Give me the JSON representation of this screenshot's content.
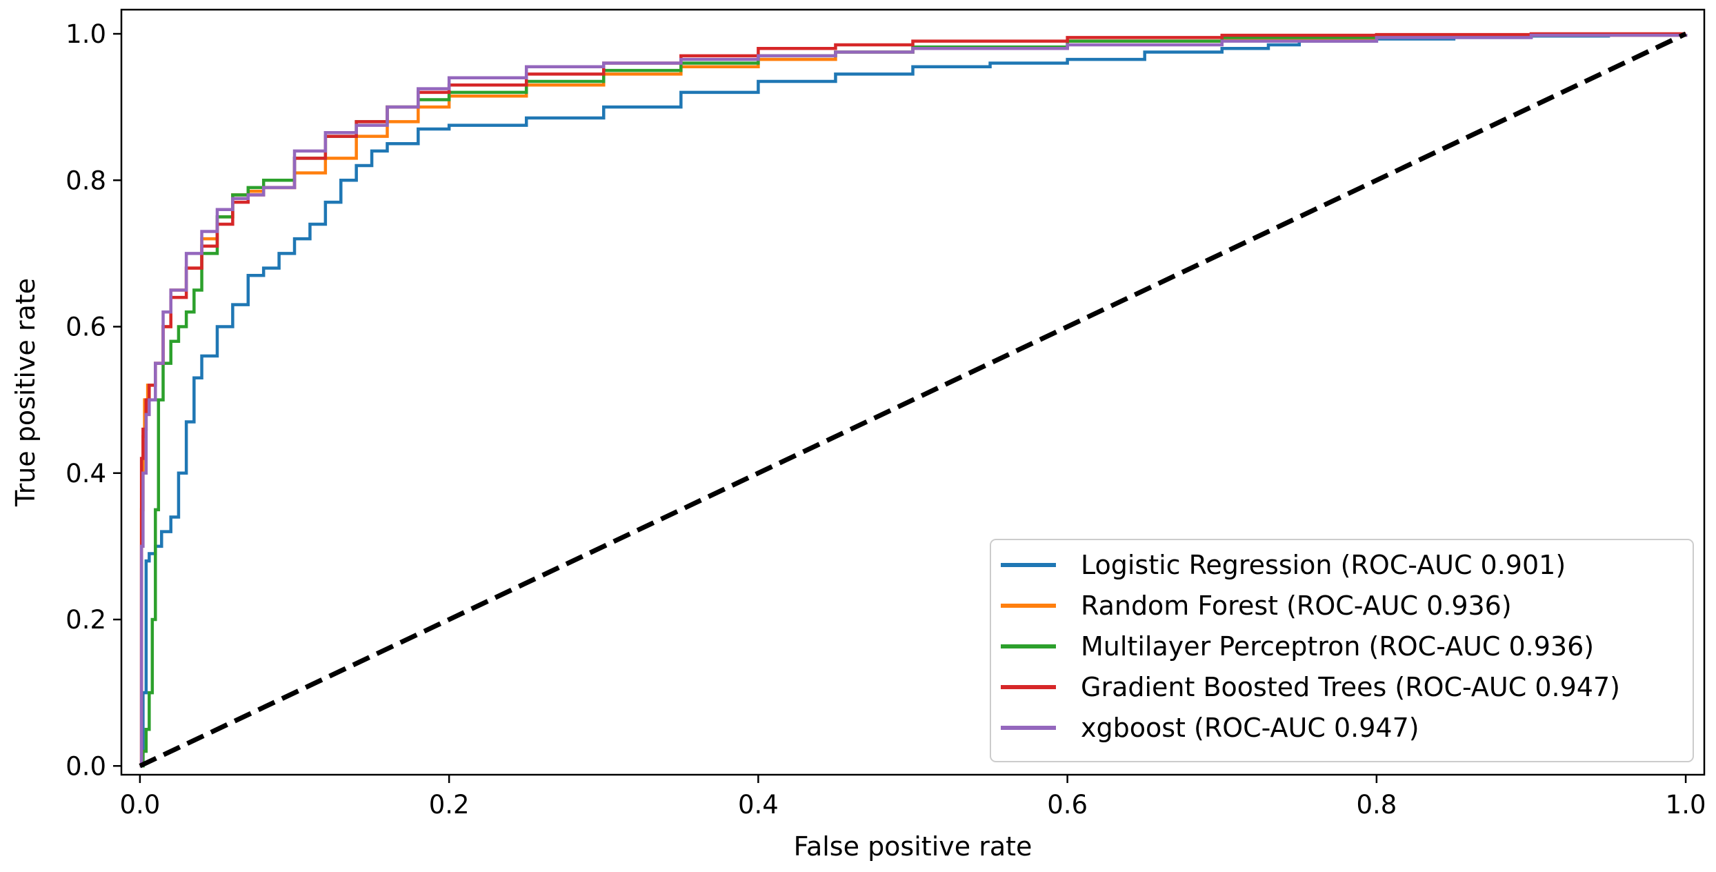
{
  "chart_data": {
    "type": "line",
    "title": "",
    "xlabel": "False positive rate",
    "ylabel": "True positive rate",
    "xlim": [
      -0.012,
      1.012
    ],
    "ylim": [
      -0.012,
      1.033
    ],
    "x_ticks": [
      0.0,
      0.2,
      0.4,
      0.6,
      0.8,
      1.0
    ],
    "x_tick_labels": [
      "0.0",
      "0.2",
      "0.4",
      "0.6",
      "0.8",
      "1.0"
    ],
    "y_ticks": [
      0.0,
      0.2,
      0.4,
      0.6,
      0.8,
      1.0
    ],
    "y_tick_labels": [
      "0.0",
      "0.2",
      "0.4",
      "0.6",
      "0.8",
      "1.0"
    ],
    "grid": false,
    "legend_position": "lower-right",
    "series": [
      {
        "name": "Logistic Regression (ROC-AUC 0.901)",
        "color": "#1f77b4",
        "x": [
          0,
          0.002,
          0.004,
          0.006,
          0.01,
          0.014,
          0.02,
          0.025,
          0.03,
          0.035,
          0.04,
          0.05,
          0.06,
          0.07,
          0.08,
          0.09,
          0.1,
          0.11,
          0.12,
          0.13,
          0.14,
          0.15,
          0.16,
          0.18,
          0.2,
          0.25,
          0.3,
          0.35,
          0.4,
          0.45,
          0.5,
          0.55,
          0.6,
          0.65,
          0.7,
          0.73,
          0.75,
          0.8,
          0.85,
          0.9,
          0.95,
          1.0
        ],
        "y": [
          0,
          0.1,
          0.28,
          0.29,
          0.3,
          0.32,
          0.34,
          0.4,
          0.47,
          0.53,
          0.56,
          0.6,
          0.63,
          0.67,
          0.68,
          0.7,
          0.72,
          0.74,
          0.77,
          0.8,
          0.82,
          0.84,
          0.85,
          0.87,
          0.875,
          0.885,
          0.9,
          0.92,
          0.935,
          0.945,
          0.955,
          0.96,
          0.965,
          0.975,
          0.98,
          0.985,
          0.99,
          0.993,
          0.995,
          0.997,
          0.999,
          1.0
        ]
      },
      {
        "name": "Random Forest (ROC-AUC 0.936)",
        "color": "#ff7f0e",
        "x": [
          0,
          0.001,
          0.002,
          0.003,
          0.005,
          0.01,
          0.015,
          0.02,
          0.03,
          0.04,
          0.05,
          0.06,
          0.07,
          0.08,
          0.1,
          0.12,
          0.14,
          0.16,
          0.18,
          0.2,
          0.25,
          0.3,
          0.35,
          0.4,
          0.45,
          0.5,
          0.6,
          0.7,
          0.8,
          0.9,
          1.0
        ],
        "y": [
          0,
          0.35,
          0.45,
          0.5,
          0.52,
          0.55,
          0.6,
          0.65,
          0.68,
          0.72,
          0.75,
          0.78,
          0.785,
          0.79,
          0.81,
          0.83,
          0.86,
          0.88,
          0.9,
          0.915,
          0.93,
          0.945,
          0.955,
          0.965,
          0.975,
          0.98,
          0.99,
          0.993,
          0.996,
          0.998,
          1.0
        ]
      },
      {
        "name": "Multilayer Perceptron (ROC-AUC 0.936)",
        "color": "#2ca02c",
        "x": [
          0,
          0.002,
          0.004,
          0.006,
          0.008,
          0.01,
          0.012,
          0.015,
          0.02,
          0.025,
          0.03,
          0.035,
          0.04,
          0.05,
          0.06,
          0.07,
          0.08,
          0.1,
          0.12,
          0.14,
          0.16,
          0.18,
          0.2,
          0.25,
          0.3,
          0.35,
          0.4,
          0.45,
          0.5,
          0.6,
          0.7,
          0.8,
          0.9,
          1.0
        ],
        "y": [
          0,
          0.02,
          0.05,
          0.1,
          0.2,
          0.35,
          0.5,
          0.55,
          0.58,
          0.6,
          0.62,
          0.65,
          0.7,
          0.75,
          0.78,
          0.79,
          0.8,
          0.83,
          0.86,
          0.88,
          0.9,
          0.91,
          0.92,
          0.935,
          0.95,
          0.96,
          0.97,
          0.975,
          0.982,
          0.99,
          0.995,
          0.997,
          0.999,
          1.0
        ]
      },
      {
        "name": "Gradient Boosted Trees (ROC-AUC 0.947)",
        "color": "#d62728",
        "x": [
          0,
          0.001,
          0.002,
          0.004,
          0.006,
          0.01,
          0.015,
          0.02,
          0.03,
          0.04,
          0.05,
          0.06,
          0.07,
          0.08,
          0.1,
          0.12,
          0.14,
          0.16,
          0.18,
          0.2,
          0.25,
          0.3,
          0.35,
          0.4,
          0.45,
          0.5,
          0.6,
          0.7,
          0.8,
          0.9,
          1.0
        ],
        "y": [
          0,
          0.42,
          0.46,
          0.5,
          0.52,
          0.55,
          0.6,
          0.64,
          0.68,
          0.71,
          0.74,
          0.77,
          0.78,
          0.79,
          0.83,
          0.86,
          0.88,
          0.9,
          0.92,
          0.93,
          0.945,
          0.96,
          0.97,
          0.98,
          0.985,
          0.99,
          0.995,
          0.998,
          0.999,
          1.0,
          1.0
        ]
      },
      {
        "name": "xgboost (ROC-AUC 0.947)",
        "color": "#9467bd",
        "x": [
          0,
          0.001,
          0.002,
          0.004,
          0.006,
          0.01,
          0.015,
          0.02,
          0.03,
          0.04,
          0.05,
          0.06,
          0.07,
          0.08,
          0.1,
          0.12,
          0.14,
          0.16,
          0.18,
          0.2,
          0.25,
          0.3,
          0.35,
          0.4,
          0.45,
          0.5,
          0.6,
          0.7,
          0.8,
          0.9,
          1.0
        ],
        "y": [
          0,
          0.3,
          0.4,
          0.48,
          0.5,
          0.55,
          0.62,
          0.65,
          0.7,
          0.73,
          0.76,
          0.775,
          0.78,
          0.79,
          0.84,
          0.865,
          0.875,
          0.9,
          0.925,
          0.94,
          0.955,
          0.96,
          0.965,
          0.97,
          0.975,
          0.98,
          0.985,
          0.99,
          0.995,
          0.998,
          1.0
        ]
      }
    ],
    "reference_line": {
      "name": "Random chance diagonal",
      "color": "#000000",
      "x": [
        0,
        1
      ],
      "y": [
        0,
        1
      ]
    }
  }
}
